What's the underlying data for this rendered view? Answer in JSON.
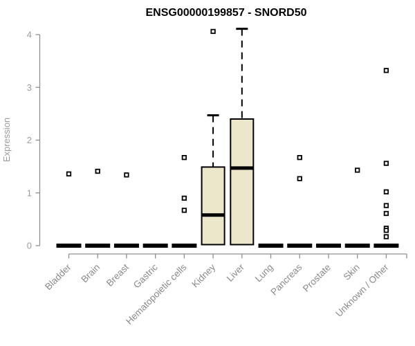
{
  "title": "ENSG00000199857 - SNORD50",
  "chart_data": {
    "type": "boxplot",
    "title": "ENSG00000199857 - SNORD50",
    "ylabel": "Expression",
    "ylim": [
      0,
      4
    ],
    "yticks": [
      "0",
      "1",
      "2",
      "3",
      "4"
    ],
    "grid": false,
    "legend": "none",
    "categories": [
      "Bladder",
      "Brain",
      "Breast",
      "Gastric",
      "Hematopoietic cells",
      "Kidney",
      "Liver",
      "Lung",
      "Pancreas",
      "Prostate",
      "Skin",
      "Unknown / Other"
    ],
    "boxes": [
      {
        "category": "Bladder",
        "whisker_low": 0,
        "q1": 0,
        "median": 0,
        "q3": 0,
        "whisker_high": 0,
        "outliers": [
          1.36
        ]
      },
      {
        "category": "Brain",
        "whisker_low": 0,
        "q1": 0,
        "median": 0,
        "q3": 0,
        "whisker_high": 0,
        "outliers": [
          1.41
        ]
      },
      {
        "category": "Breast",
        "whisker_low": 0,
        "q1": 0,
        "median": 0,
        "q3": 0,
        "whisker_high": 0,
        "outliers": [
          1.34
        ]
      },
      {
        "category": "Gastric",
        "whisker_low": 0,
        "q1": 0,
        "median": 0,
        "q3": 0,
        "whisker_high": 0,
        "outliers": []
      },
      {
        "category": "Hematopoietic cells",
        "whisker_low": 0,
        "q1": 0,
        "median": 0,
        "q3": 0,
        "whisker_high": 0,
        "outliers": [
          1.67,
          0.9,
          0.67
        ]
      },
      {
        "category": "Kidney",
        "whisker_low": 0,
        "q1": 0.02,
        "median": 0.58,
        "q3": 1.49,
        "whisker_high": 2.47,
        "outliers": [
          4.06
        ]
      },
      {
        "category": "Liver",
        "whisker_low": 0,
        "q1": 0.02,
        "median": 1.47,
        "q3": 2.4,
        "whisker_high": 4.11,
        "outliers": []
      },
      {
        "category": "Lung",
        "whisker_low": 0,
        "q1": 0,
        "median": 0,
        "q3": 0,
        "whisker_high": 0,
        "outliers": []
      },
      {
        "category": "Pancreas",
        "whisker_low": 0,
        "q1": 0,
        "median": 0,
        "q3": 0,
        "whisker_high": 0,
        "outliers": [
          1.67,
          1.27
        ]
      },
      {
        "category": "Prostate",
        "whisker_low": 0,
        "q1": 0,
        "median": 0,
        "q3": 0,
        "whisker_high": 0,
        "outliers": []
      },
      {
        "category": "Skin",
        "whisker_low": 0,
        "q1": 0,
        "median": 0,
        "q3": 0,
        "whisker_high": 0,
        "outliers": [
          1.43
        ]
      },
      {
        "category": "Unknown / Other",
        "whisker_low": 0,
        "q1": 0,
        "median": 0,
        "q3": 0,
        "whisker_high": 0,
        "outliers": [
          3.32,
          1.56,
          1.02,
          0.76,
          0.61,
          0.33,
          0.29,
          0.17
        ]
      }
    ],
    "colors": {
      "box_fill": "#ECE7CB",
      "box_stroke": "#000000",
      "axis": "#8F8F8F",
      "tick_label": "#9B9B9B",
      "category_label": "#8A8A8A",
      "title": "#000000",
      "background": "#FFFFFF"
    }
  }
}
